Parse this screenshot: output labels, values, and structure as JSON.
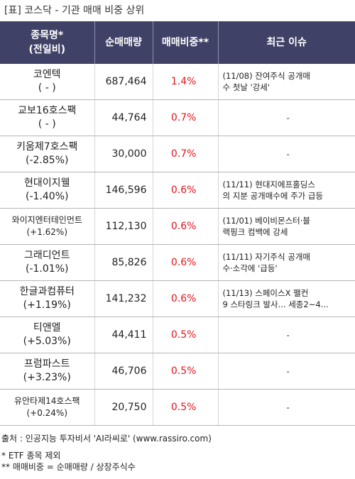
{
  "title": "[표] 코스닥 - 기관 매매 비중 상위",
  "header": {
    "col1_line1": "종목명*",
    "col1_line2": "(전일비)",
    "col2": "순매매량",
    "col3": "매매비중**",
    "col4": "최근 이슈"
  },
  "rows": [
    {
      "name": "코엔텍",
      "change": "( - )",
      "volume": "687,464",
      "ratio": "1.4%",
      "issue_line1": "(11/08) 잔여주식 공개매",
      "issue_line2": "수 첫날 '강세'"
    },
    {
      "name": "교보16호스팩",
      "change": "( - )",
      "volume": "44,764",
      "ratio": "0.7%",
      "issue_line1": "-",
      "issue_line2": ""
    },
    {
      "name": "키움제7호스팩",
      "change": "(-2.85%)",
      "volume": "30,000",
      "ratio": "0.7%",
      "issue_line1": "-",
      "issue_line2": ""
    },
    {
      "name": "현대이지웰",
      "change": "(-1.40%)",
      "volume": "146,596",
      "ratio": "0.6%",
      "issue_line1": "(11/11) 현대지에프홀딩스",
      "issue_line2": "의 지분 공개매수에 주가 급등"
    },
    {
      "name": "와이지엔터테인먼트",
      "change": "(+1.62%)",
      "volume": "112,130",
      "ratio": "0.6%",
      "issue_line1": "(11/01) 베이비몬스터·블",
      "issue_line2": "랙핑크 컴백에 강세"
    },
    {
      "name": "그래디언트",
      "change": "(-1.01%)",
      "volume": "85,826",
      "ratio": "0.6%",
      "issue_line1": "(11/11) 자기주식 공개매",
      "issue_line2": "수·소각에 '급등'"
    },
    {
      "name": "한글과컴퓨터",
      "change": "(+1.19%)",
      "volume": "141,232",
      "ratio": "0.6%",
      "issue_line1": "(11/13) 스페이스X 팰컨",
      "issue_line2": "9 스타링크 발사... 세종2~4..."
    },
    {
      "name": "티앤엘",
      "change": "(+5.03%)",
      "volume": "44,411",
      "ratio": "0.5%",
      "issue_line1": "-",
      "issue_line2": ""
    },
    {
      "name": "프럼파스트",
      "change": "(+3.23%)",
      "volume": "46,706",
      "ratio": "0.5%",
      "issue_line1": "-",
      "issue_line2": ""
    },
    {
      "name": "유안타제14호스팩",
      "change": "(+0.24%)",
      "volume": "20,750",
      "ratio": "0.5%",
      "issue_line1": "-",
      "issue_line2": ""
    }
  ],
  "footer": {
    "source": "출처 : 인공지능 투자비서 'AI라씨로' (www.rassiro.com)",
    "note1": "* ETF 종목 제외",
    "note2": "** 매매비중 = 순매매량 / 상장주식수"
  },
  "colors": {
    "header_bg": "#3f4266",
    "ratio_text": "#e8141b"
  }
}
